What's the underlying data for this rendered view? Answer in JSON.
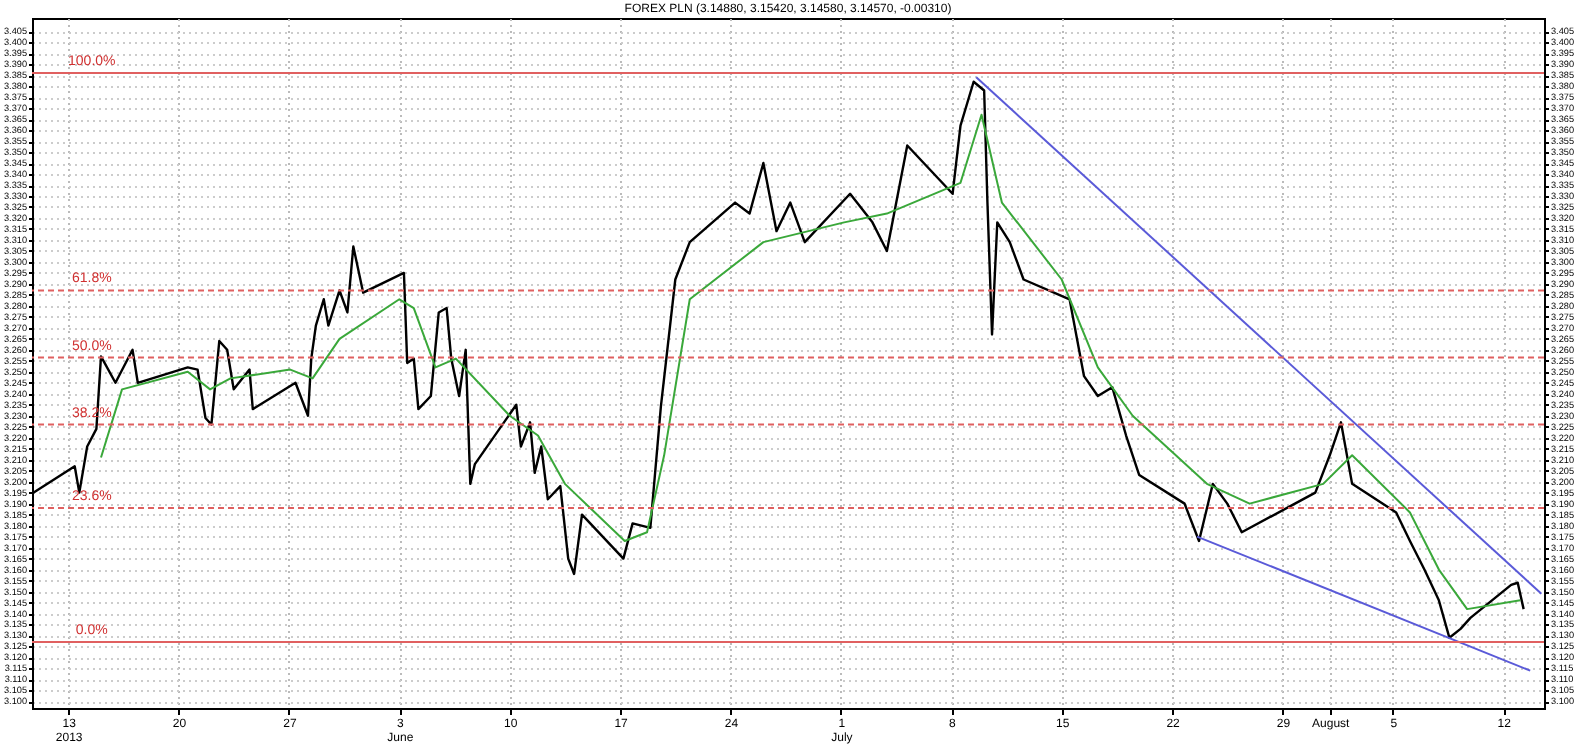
{
  "chart_data": {
    "type": "line",
    "title": "FOREX PLN (3.14880, 3.15420, 3.14580, 3.14570, -0.00310)",
    "xlim": [
      "2013-05-10T17:00",
      "2013-08-14T14:00"
    ],
    "xticks": [
      {
        "value": "2013-05-13T00:00",
        "label": "13\n2013"
      },
      {
        "value": "2013-05-20T00:00",
        "label": "20"
      },
      {
        "value": "2013-05-27T00:00",
        "label": "27"
      },
      {
        "value": "2013-06-03T00:00",
        "label": "3\nJune"
      },
      {
        "value": "2013-06-10T00:00",
        "label": "10"
      },
      {
        "value": "2013-06-17T00:00",
        "label": "17"
      },
      {
        "value": "2013-06-24T00:00",
        "label": "24"
      },
      {
        "value": "2013-07-01T00:00",
        "label": "1\nJuly"
      },
      {
        "value": "2013-07-08T00:00",
        "label": "8"
      },
      {
        "value": "2013-07-15T00:00",
        "label": "15"
      },
      {
        "value": "2013-07-22T00:00",
        "label": "22"
      },
      {
        "value": "2013-07-29T00:00",
        "label": "29"
      },
      {
        "value": "2013-08-01T00:00",
        "label": "August"
      },
      {
        "value": "2013-08-05T00:00",
        "label": "5"
      },
      {
        "value": "2013-08-12T00:00",
        "label": "12"
      }
    ],
    "ylim": [
      3.097,
      3.411
    ],
    "yticks": [
      {
        "value": 3.1,
        "label": "3.100"
      },
      {
        "value": 3.105,
        "label": "3.105"
      },
      {
        "value": 3.11,
        "label": "3.110"
      },
      {
        "value": 3.115,
        "label": "3.115"
      },
      {
        "value": 3.12,
        "label": "3.120"
      },
      {
        "value": 3.125,
        "label": "3.125"
      },
      {
        "value": 3.13,
        "label": "3.130"
      },
      {
        "value": 3.135,
        "label": "3.135"
      },
      {
        "value": 3.14,
        "label": "3.140"
      },
      {
        "value": 3.145,
        "label": "3.145"
      },
      {
        "value": 3.15,
        "label": "3.150"
      },
      {
        "value": 3.155,
        "label": "3.155"
      },
      {
        "value": 3.16,
        "label": "3.160"
      },
      {
        "value": 3.165,
        "label": "3.165"
      },
      {
        "value": 3.17,
        "label": "3.170"
      },
      {
        "value": 3.175,
        "label": "3.175"
      },
      {
        "value": 3.18,
        "label": "3.180"
      },
      {
        "value": 3.185,
        "label": "3.185"
      },
      {
        "value": 3.19,
        "label": "3.190"
      },
      {
        "value": 3.195,
        "label": "3.195"
      },
      {
        "value": 3.2,
        "label": "3.200"
      },
      {
        "value": 3.205,
        "label": "3.205"
      },
      {
        "value": 3.21,
        "label": "3.210"
      },
      {
        "value": 3.215,
        "label": "3.215"
      },
      {
        "value": 3.22,
        "label": "3.220"
      },
      {
        "value": 3.225,
        "label": "3.225"
      },
      {
        "value": 3.23,
        "label": "3.230"
      },
      {
        "value": 3.235,
        "label": "3.235"
      },
      {
        "value": 3.24,
        "label": "3.240"
      },
      {
        "value": 3.245,
        "label": "3.245"
      },
      {
        "value": 3.25,
        "label": "3.250"
      },
      {
        "value": 3.255,
        "label": "3.255"
      },
      {
        "value": 3.26,
        "label": "3.260"
      },
      {
        "value": 3.265,
        "label": "3.265"
      },
      {
        "value": 3.27,
        "label": "3.270"
      },
      {
        "value": 3.275,
        "label": "3.275"
      },
      {
        "value": 3.28,
        "label": "3.280"
      },
      {
        "value": 3.285,
        "label": "3.285"
      },
      {
        "value": 3.29,
        "label": "3.290"
      },
      {
        "value": 3.295,
        "label": "3.295"
      },
      {
        "value": 3.3,
        "label": "3.300"
      },
      {
        "value": 3.305,
        "label": "3.305"
      },
      {
        "value": 3.31,
        "label": "3.310"
      },
      {
        "value": 3.315,
        "label": "3.315"
      },
      {
        "value": 3.32,
        "label": "3.320"
      },
      {
        "value": 3.325,
        "label": "3.325"
      },
      {
        "value": 3.33,
        "label": "3.330"
      },
      {
        "value": 3.335,
        "label": "3.335"
      },
      {
        "value": 3.34,
        "label": "3.340"
      },
      {
        "value": 3.345,
        "label": "3.345"
      },
      {
        "value": 3.35,
        "label": "3.350"
      },
      {
        "value": 3.355,
        "label": "3.355"
      },
      {
        "value": 3.36,
        "label": "3.360"
      },
      {
        "value": 3.365,
        "label": "3.365"
      },
      {
        "value": 3.37,
        "label": "3.370"
      },
      {
        "value": 3.375,
        "label": "3.375"
      },
      {
        "value": 3.38,
        "label": "3.380"
      },
      {
        "value": 3.385,
        "label": "3.385"
      },
      {
        "value": 3.39,
        "label": "3.390"
      },
      {
        "value": 3.395,
        "label": "3.395"
      },
      {
        "value": 3.4,
        "label": "3.400"
      },
      {
        "value": 3.405,
        "label": "3.405"
      }
    ],
    "y2lim": [
      3.097,
      3.411
    ],
    "y2ticks": [
      {
        "value": 3.1,
        "label": "3.100"
      },
      {
        "value": 3.105,
        "label": "3.105"
      },
      {
        "value": 3.11,
        "label": "3.110"
      },
      {
        "value": 3.115,
        "label": "3.115"
      },
      {
        "value": 3.12,
        "label": "3.120"
      },
      {
        "value": 3.125,
        "label": "3.125"
      },
      {
        "value": 3.13,
        "label": "3.130"
      },
      {
        "value": 3.135,
        "label": "3.135"
      },
      {
        "value": 3.14,
        "label": "3.140"
      },
      {
        "value": 3.145,
        "label": "3.145"
      },
      {
        "value": 3.15,
        "label": "3.150"
      },
      {
        "value": 3.155,
        "label": "3.155"
      },
      {
        "value": 3.16,
        "label": "3.160"
      },
      {
        "value": 3.165,
        "label": "3.165"
      },
      {
        "value": 3.17,
        "label": "3.170"
      },
      {
        "value": 3.175,
        "label": "3.175"
      },
      {
        "value": 3.18,
        "label": "3.180"
      },
      {
        "value": 3.185,
        "label": "3.185"
      },
      {
        "value": 3.19,
        "label": "3.190"
      },
      {
        "value": 3.195,
        "label": "3.195"
      },
      {
        "value": 3.2,
        "label": "3.200"
      },
      {
        "value": 3.205,
        "label": "3.205"
      },
      {
        "value": 3.21,
        "label": "3.210"
      },
      {
        "value": 3.215,
        "label": "3.215"
      },
      {
        "value": 3.22,
        "label": "3.220"
      },
      {
        "value": 3.225,
        "label": "3.225"
      },
      {
        "value": 3.23,
        "label": "3.230"
      },
      {
        "value": 3.235,
        "label": "3.235"
      },
      {
        "value": 3.24,
        "label": "3.240"
      },
      {
        "value": 3.245,
        "label": "3.245"
      },
      {
        "value": 3.25,
        "label": "3.250"
      },
      {
        "value": 3.255,
        "label": "3.255"
      },
      {
        "value": 3.26,
        "label": "3.260"
      },
      {
        "value": 3.265,
        "label": "3.265"
      },
      {
        "value": 3.27,
        "label": "3.270"
      },
      {
        "value": 3.275,
        "label": "3.275"
      },
      {
        "value": 3.28,
        "label": "3.280"
      },
      {
        "value": 3.285,
        "label": "3.285"
      },
      {
        "value": 3.29,
        "label": "3.290"
      },
      {
        "value": 3.295,
        "label": "3.295"
      },
      {
        "value": 3.3,
        "label": "3.300"
      },
      {
        "value": 3.305,
        "label": "3.305"
      },
      {
        "value": 3.31,
        "label": "3.310"
      },
      {
        "value": 3.315,
        "label": "3.315"
      },
      {
        "value": 3.32,
        "label": "3.320"
      },
      {
        "value": 3.325,
        "label": "3.325"
      },
      {
        "value": 3.33,
        "label": "3.330"
      },
      {
        "value": 3.335,
        "label": "3.335"
      },
      {
        "value": 3.34,
        "label": "3.340"
      },
      {
        "value": 3.345,
        "label": "3.345"
      },
      {
        "value": 3.35,
        "label": "3.350"
      },
      {
        "value": 3.355,
        "label": "3.355"
      },
      {
        "value": 3.36,
        "label": "3.360"
      },
      {
        "value": 3.365,
        "label": "3.365"
      },
      {
        "value": 3.37,
        "label": "3.370"
      },
      {
        "value": 3.375,
        "label": "3.375"
      },
      {
        "value": 3.38,
        "label": "3.380"
      },
      {
        "value": 3.385,
        "label": "3.385"
      },
      {
        "value": 3.39,
        "label": "3.390"
      },
      {
        "value": 3.395,
        "label": "3.395"
      },
      {
        "value": 3.4,
        "label": "3.400"
      },
      {
        "value": 3.405,
        "label": "3.405"
      }
    ],
    "grid": true,
    "series": [
      {
        "color": "#000000",
        "x": [
          "2013-05-10T19:00",
          "2013-05-13T10:00",
          "2013-05-13T17:00",
          "2013-05-14T05:00",
          "2013-05-14T19:00",
          "2013-05-15T02:00",
          "2013-05-16T00:00",
          "2013-05-17T02:00",
          "2013-05-17T10:00",
          "2013-05-20T14:00",
          "2013-05-21T05:00",
          "2013-05-21T17:00",
          "2013-05-22T02:00",
          "2013-05-22T14:00",
          "2013-05-23T02:00",
          "2013-05-23T12:00",
          "2013-05-24T12:00",
          "2013-05-24T17:00",
          "2013-05-27T10:00",
          "2013-05-28T05:00",
          "2013-05-28T10:00",
          "2013-05-28T17:00",
          "2013-05-29T05:00",
          "2013-05-29T12:00",
          "2013-05-30T05:00",
          "2013-05-30T17:00",
          "2013-05-31T02:00",
          "2013-05-31T17:00",
          "2013-06-03T07:00",
          "2013-06-03T12:00",
          "2013-06-03T22:00",
          "2013-06-04T05:00",
          "2013-06-05T00:00",
          "2013-06-05T12:00",
          "2013-06-06T00:00",
          "2013-06-06T07:00",
          "2013-06-06T19:00",
          "2013-06-07T05:00",
          "2013-06-07T12:00",
          "2013-06-07T19:00",
          "2013-06-10T10:00",
          "2013-06-10T17:00",
          "2013-06-11T07:00",
          "2013-06-11T14:00",
          "2013-06-12T00:00",
          "2013-06-12T10:00",
          "2013-06-13T05:00",
          "2013-06-13T17:00",
          "2013-06-14T02:00",
          "2013-06-14T14:00",
          "2013-06-17T05:00",
          "2013-06-17T19:00",
          "2013-06-18T22:00",
          "2013-06-19T14:00",
          "2013-06-20T12:00",
          "2013-06-21T10:00",
          "2013-06-24T07:00",
          "2013-06-25T05:00",
          "2013-06-26T02:00",
          "2013-06-26T22:00",
          "2013-06-27T19:00",
          "2013-06-28T17:00",
          "2013-07-01T14:00",
          "2013-07-03T00:00",
          "2013-07-03T22:00",
          "2013-07-05T05:00",
          "2013-07-08T02:00",
          "2013-07-08T14:00",
          "2013-07-09T10:00",
          "2013-07-10T02:00",
          "2013-07-10T07:00",
          "2013-07-10T14:00",
          "2013-07-10T22:00",
          "2013-07-11T17:00",
          "2013-07-12T14:00",
          "2013-07-15T12:00",
          "2013-07-16T10:00",
          "2013-07-17T07:00",
          "2013-07-18T05:00",
          "2013-07-19T02:00",
          "2013-07-19T22:00",
          "2013-07-22T19:00",
          "2013-07-23T17:00",
          "2013-07-24T14:00",
          "2013-07-25T12:00",
          "2013-07-26T10:00",
          "2013-07-29T19:00",
          "2013-07-31T02:00",
          "2013-08-01T00:00",
          "2013-08-01T17:00",
          "2013-08-02T10:00",
          "2013-08-05T05:00",
          "2013-08-06T02:00",
          "2013-08-07T00:00",
          "2013-08-07T22:00",
          "2013-08-08T14:00",
          "2013-08-09T07:00",
          "2013-08-09T22:00",
          "2013-08-12T12:00",
          "2013-08-12T22:00",
          "2013-08-13T07:00"
        ],
        "values": [
          3.195,
          3.207,
          3.195,
          3.216,
          3.224,
          3.257,
          3.245,
          3.26,
          3.245,
          3.252,
          3.251,
          3.229,
          3.226,
          3.264,
          3.26,
          3.242,
          3.251,
          3.233,
          3.245,
          3.23,
          3.256,
          3.271,
          3.283,
          3.271,
          3.287,
          3.277,
          3.307,
          3.286,
          3.295,
          3.254,
          3.256,
          3.233,
          3.239,
          3.277,
          3.279,
          3.256,
          3.239,
          3.26,
          3.199,
          3.208,
          3.235,
          3.216,
          3.227,
          3.204,
          3.216,
          3.192,
          3.198,
          3.165,
          3.158,
          3.185,
          3.165,
          3.181,
          3.179,
          3.234,
          3.292,
          3.309,
          3.327,
          3.322,
          3.345,
          3.314,
          3.327,
          3.309,
          3.331,
          3.318,
          3.305,
          3.353,
          3.331,
          3.362,
          3.382,
          3.378,
          3.327,
          3.267,
          3.318,
          3.309,
          3.292,
          3.283,
          3.248,
          3.239,
          3.243,
          3.221,
          3.203,
          3.19,
          3.173,
          3.199,
          3.19,
          3.177,
          3.19,
          3.195,
          3.212,
          3.227,
          3.199,
          3.186,
          3.173,
          3.16,
          3.146,
          3.129,
          3.133,
          3.138,
          3.153,
          3.154,
          3.142
        ]
      },
      {
        "color": "#3aa83a",
        "x": [
          "2013-05-15T02:00",
          "2013-05-16T10:00",
          "2013-05-20T14:00",
          "2013-05-22T00:00",
          "2013-05-23T07:00",
          "2013-05-27T02:00",
          "2013-05-28T12:00",
          "2013-05-30T05:00",
          "2013-06-03T00:00",
          "2013-06-03T22:00",
          "2013-06-05T07:00",
          "2013-06-06T14:00",
          "2013-06-10T00:00",
          "2013-06-11T19:00",
          "2013-06-13T12:00",
          "2013-06-17T07:00",
          "2013-06-18T17:00",
          "2013-06-19T19:00",
          "2013-06-21T10:00",
          "2013-06-26T02:00",
          "2013-07-01T05:00",
          "2013-07-03T22:00",
          "2013-07-08T14:00",
          "2013-07-09T22:00",
          "2013-07-11T05:00",
          "2013-07-15T00:00",
          "2013-07-17T07:00",
          "2013-07-19T12:00",
          "2013-07-24T05:00",
          "2013-07-26T22:00",
          "2013-07-31T14:00",
          "2013-08-02T10:00",
          "2013-08-06T02:00",
          "2013-08-07T22:00",
          "2013-08-09T17:00",
          "2013-08-13T02:00"
        ],
        "values": [
          3.211,
          3.242,
          3.25,
          3.242,
          3.247,
          3.251,
          3.247,
          3.265,
          3.283,
          3.279,
          3.252,
          3.256,
          3.23,
          3.221,
          3.199,
          3.173,
          3.177,
          3.212,
          3.283,
          3.309,
          3.318,
          3.322,
          3.336,
          3.367,
          3.327,
          3.292,
          3.252,
          3.23,
          3.199,
          3.19,
          3.199,
          3.212,
          3.186,
          3.16,
          3.142,
          3.146
        ]
      },
      {
        "color": "#5a5ad8",
        "x": [
          "2013-07-09T14:00",
          "2013-08-14T10:00"
        ],
        "values": [
          3.384,
          3.149
        ]
      },
      {
        "color": "#5a5ad8",
        "x": [
          "2013-07-23T14:00",
          "2013-08-13T17:00"
        ],
        "values": [
          3.175,
          3.114
        ]
      }
    ],
    "ref_lines": [
      {
        "axis": "y",
        "value": 3.386,
        "color": "#e06060",
        "line_style": "solid"
      },
      {
        "axis": "y",
        "value": 3.287,
        "color": "#e06060",
        "line_style": "dashed"
      },
      {
        "axis": "y",
        "value": 3.2565,
        "color": "#e06060",
        "line_style": "dashed"
      },
      {
        "axis": "y",
        "value": 3.226,
        "color": "#e06060",
        "line_style": "dashed"
      },
      {
        "axis": "y",
        "value": 3.188,
        "color": "#e06060",
        "line_style": "dashed"
      },
      {
        "axis": "y",
        "value": 3.127,
        "color": "#e06060",
        "line_style": "solid"
      }
    ],
    "annotations": [
      {
        "text": "100.0%",
        "x": "2013-05-14T12:00",
        "y": 3.386
      },
      {
        "text": "61.8%",
        "x": "2013-05-14T12:00",
        "y": 3.287
      },
      {
        "text": "50.0%",
        "x": "2013-05-14T12:00",
        "y": 3.2565
      },
      {
        "text": "38.2%",
        "x": "2013-05-14T12:00",
        "y": 3.226
      },
      {
        "text": "23.6%",
        "x": "2013-05-14T12:00",
        "y": 3.188
      },
      {
        "text": "0.0%",
        "x": "2013-05-14T12:00",
        "y": 3.127
      }
    ]
  }
}
